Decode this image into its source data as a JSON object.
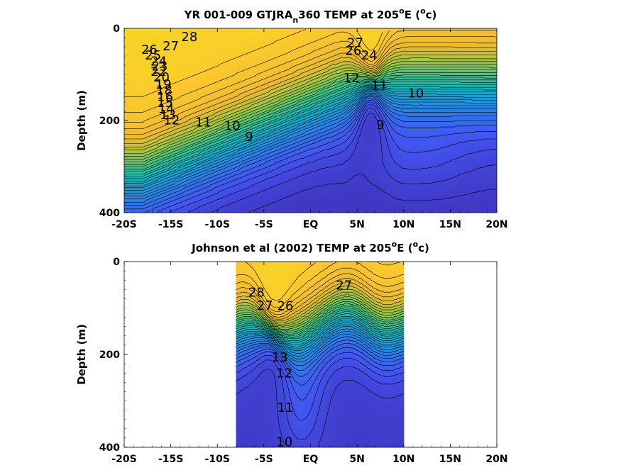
{
  "chart_data": [
    {
      "type": "heatmap",
      "subtype": "filled-contour",
      "title": "YR 001-009 GTJRA",
      "title_subscript": "n",
      "title_rest": "360 TEMP at 205",
      "title_superscript": "o",
      "title_end": "E (",
      "title_unit_superscript": "o",
      "title_unit_end": "c)",
      "ylabel": "Depth (m)",
      "xlabel": "",
      "x_ticks": [
        "-20S",
        "-15S",
        "-10S",
        "-5S",
        "EQ",
        "5N",
        "10N",
        "15N",
        "20N"
      ],
      "x_tick_values": [
        -20,
        -15,
        -10,
        -5,
        0,
        5,
        10,
        15,
        20
      ],
      "y_ticks": [
        "0",
        "200",
        "400"
      ],
      "y_tick_values": [
        0,
        200,
        400
      ],
      "xlim": [
        -20,
        20
      ],
      "ylim": [
        400,
        0
      ],
      "y_reversed": true,
      "data_xlim": [
        -20,
        20
      ],
      "colormap": "parula",
      "color_range": [
        8,
        29
      ],
      "contour_labels": [
        {
          "text": "28",
          "x": -13,
          "y": 20
        },
        {
          "text": "27",
          "x": -15,
          "y": 40
        },
        {
          "text": "26",
          "x": -17.3,
          "y": 48
        },
        {
          "text": "25",
          "x": -16.9,
          "y": 60
        },
        {
          "text": "24",
          "x": -16.3,
          "y": 73
        },
        {
          "text": "23",
          "x": -16.2,
          "y": 84
        },
        {
          "text": "22",
          "x": -16.3,
          "y": 95
        },
        {
          "text": "20",
          "x": -16.0,
          "y": 108
        },
        {
          "text": "19",
          "x": -15.8,
          "y": 123
        },
        {
          "text": "18",
          "x": -15.7,
          "y": 136
        },
        {
          "text": "16",
          "x": -15.6,
          "y": 150
        },
        {
          "text": "15",
          "x": -15.6,
          "y": 163
        },
        {
          "text": "14",
          "x": -15.5,
          "y": 176
        },
        {
          "text": "13",
          "x": -15.3,
          "y": 189
        },
        {
          "text": "12",
          "x": -14.9,
          "y": 201
        },
        {
          "text": "11",
          "x": -11.5,
          "y": 205
        },
        {
          "text": "10",
          "x": -8.4,
          "y": 213
        },
        {
          "text": "9",
          "x": -6.6,
          "y": 237
        },
        {
          "text": "27",
          "x": 4.8,
          "y": 33
        },
        {
          "text": "26",
          "x": 4.6,
          "y": 50
        },
        {
          "text": "24",
          "x": 6.3,
          "y": 60
        },
        {
          "text": "12",
          "x": 4.4,
          "y": 109
        },
        {
          "text": "11",
          "x": 7.4,
          "y": 125
        },
        {
          "text": "10",
          "x": 11.3,
          "y": 142
        },
        {
          "text": "9",
          "x": 7.5,
          "y": 211
        }
      ]
    },
    {
      "type": "heatmap",
      "subtype": "filled-contour",
      "title": "Johnson et al (2002) TEMP at 205",
      "title_superscript": "o",
      "title_end": "E (",
      "title_unit_superscript": "o",
      "title_unit_end": "c)",
      "ylabel": "Depth (m)",
      "xlabel": "",
      "x_ticks": [
        "-20S",
        "-15S",
        "-10S",
        "-5S",
        "EQ",
        "5N",
        "10N",
        "15N",
        "20N"
      ],
      "x_tick_values": [
        -20,
        -15,
        -10,
        -5,
        0,
        5,
        10,
        15,
        20
      ],
      "y_ticks": [
        "0",
        "200",
        "400"
      ],
      "y_tick_values": [
        0,
        200,
        400
      ],
      "xlim": [
        -20,
        20
      ],
      "ylim": [
        400,
        0
      ],
      "y_reversed": true,
      "data_xlim": [
        -8,
        10
      ],
      "colormap": "parula",
      "color_range": [
        8,
        29
      ],
      "contour_labels": [
        {
          "text": "28",
          "x": -5.8,
          "y": 68
        },
        {
          "text": "27",
          "x": -4.9,
          "y": 96
        },
        {
          "text": "26",
          "x": -2.7,
          "y": 97
        },
        {
          "text": "13",
          "x": -3.3,
          "y": 208
        },
        {
          "text": "12",
          "x": -2.8,
          "y": 242
        },
        {
          "text": "11",
          "x": -2.7,
          "y": 316
        },
        {
          "text": "10",
          "x": -2.8,
          "y": 390
        },
        {
          "text": "27",
          "x": 3.6,
          "y": 53
        }
      ]
    }
  ]
}
